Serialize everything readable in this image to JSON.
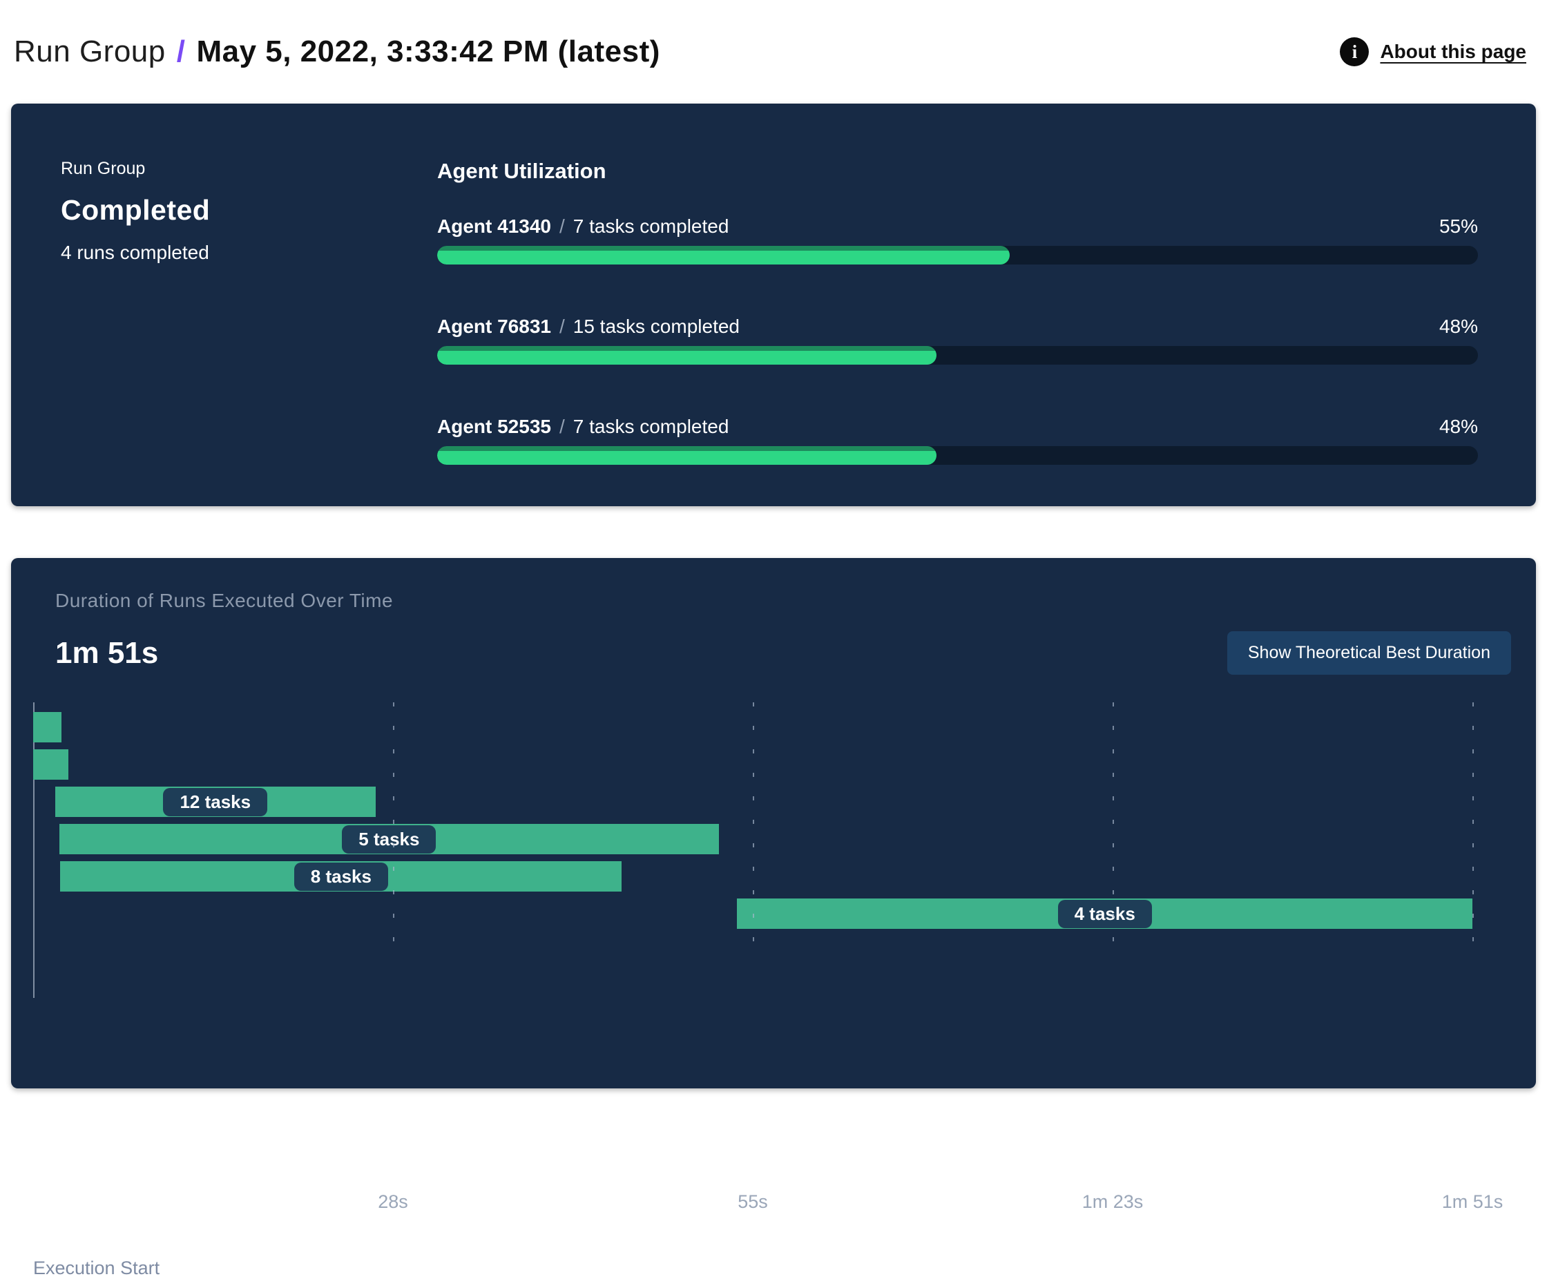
{
  "header": {
    "breadcrumb": "Run Group",
    "separator": "/",
    "title": "May 5, 2022, 3:33:42 PM (latest)",
    "about_label": "About this page",
    "info_icon_glyph": "i"
  },
  "summary": {
    "eyebrow": "Run Group",
    "status": "Completed",
    "runs_completed": "4 runs completed",
    "utilization_heading": "Agent Utilization",
    "agents": [
      {
        "name": "Agent 41340",
        "sep": "/",
        "tasks": "7 tasks completed",
        "percent": 55,
        "percent_label": "55%"
      },
      {
        "name": "Agent 76831",
        "sep": "/",
        "tasks": "15 tasks completed",
        "percent": 48,
        "percent_label": "48%"
      },
      {
        "name": "Agent 52535",
        "sep": "/",
        "tasks": "7 tasks completed",
        "percent": 48,
        "percent_label": "48%"
      }
    ]
  },
  "duration": {
    "subtitle": "Duration of Runs Executed Over Time",
    "total": "1m 51s",
    "button_label": "Show Theoretical Best Duration",
    "execution_start_label": "Execution Start"
  },
  "chart_data": {
    "type": "bar",
    "variant": "gantt-timeline",
    "title": "Duration of Runs Executed Over Time",
    "total_duration_label": "1m 51s",
    "x_unit": "seconds",
    "xlim": [
      0,
      111
    ],
    "grid": "vertical-dashed",
    "ticks": [
      {
        "x": 27.75,
        "label": "28s"
      },
      {
        "x": 55.5,
        "label": "55s"
      },
      {
        "x": 83.25,
        "label": "1m 23s"
      },
      {
        "x": 111,
        "label": "1m 51s"
      }
    ],
    "runs": [
      {
        "row": 1,
        "start_s": 0,
        "end_s": 2.2,
        "label": ""
      },
      {
        "row": 2,
        "start_s": 0,
        "end_s": 2.7,
        "label": ""
      },
      {
        "row": 3,
        "start_s": 1.7,
        "end_s": 26.4,
        "label": "12 tasks"
      },
      {
        "row": 4,
        "start_s": 2.0,
        "end_s": 52.9,
        "label": "5 tasks"
      },
      {
        "row": 5,
        "start_s": 2.1,
        "end_s": 45.4,
        "label": "8 tasks"
      },
      {
        "row": 6,
        "start_s": 54.3,
        "end_s": 111,
        "label": "4 tasks"
      }
    ],
    "xlabel": "Execution Start"
  },
  "colors": {
    "panel_bg": "#172a45",
    "progress_fill": "#2dd785",
    "progress_fill_edge": "#1e8a5c",
    "progress_track": "#0d1b2d",
    "gantt_bar": "#3eb28b",
    "task_pill_bg": "#1e3d57",
    "accent_purple": "#7a4bf5",
    "muted_text": "#8c99ac",
    "button_bg": "#1d4065"
  }
}
